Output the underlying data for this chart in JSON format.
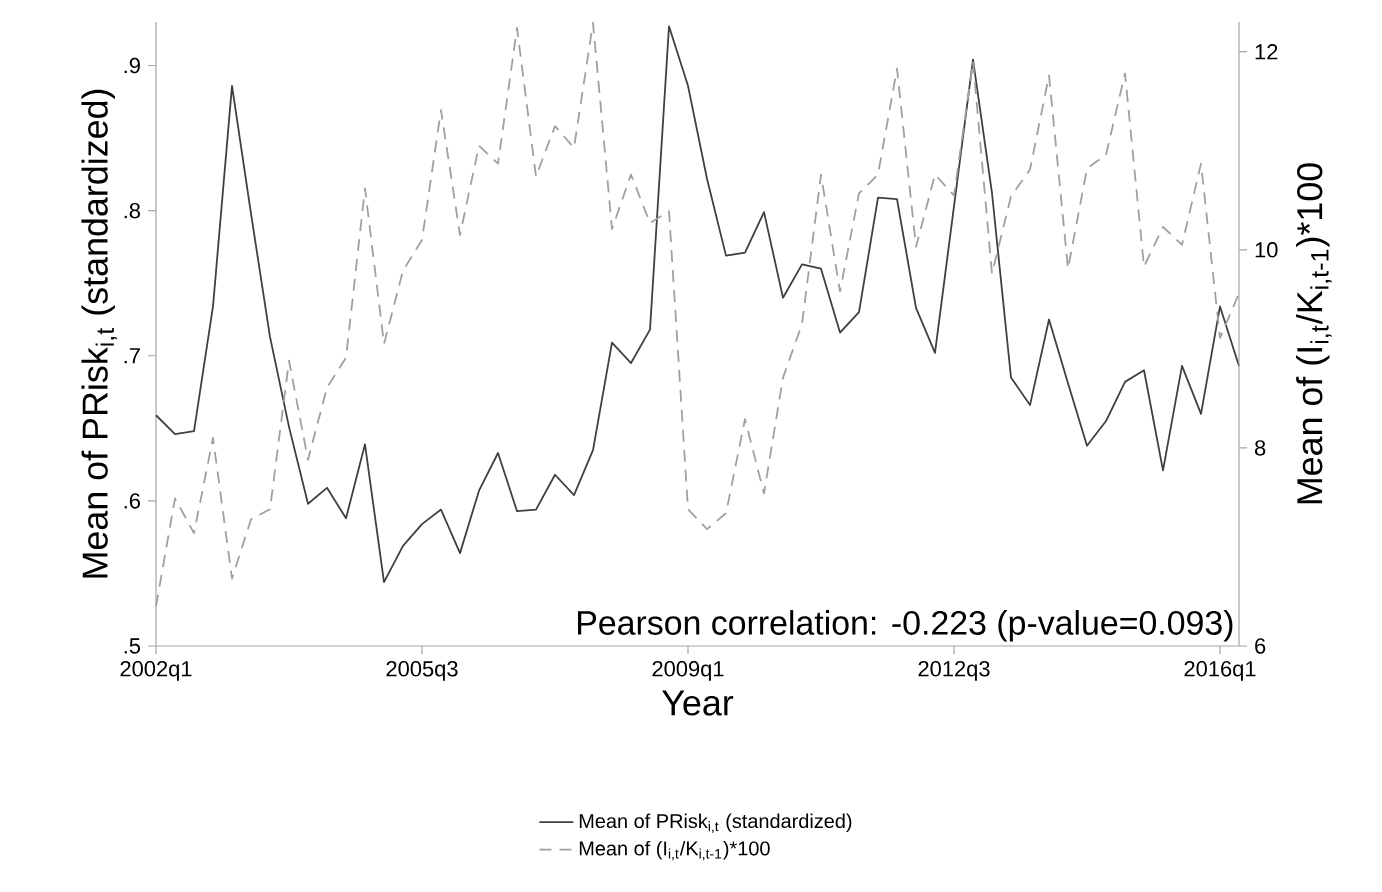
{
  "chart_data": {
    "type": "line",
    "xlabel": "Year",
    "ylabel": "Mean of PRisk$_{i,t}$ (standardized)",
    "y2label": "Mean of (I$_{i,t}$/K$_{i,t-1}$)*100",
    "annotations": [
      "Pearson correlation: -0.223 (p-value=0.093)"
    ],
    "categories": [
      "2002q1",
      null,
      null,
      null,
      null,
      null,
      null,
      null,
      null,
      null,
      null,
      null,
      null,
      null,
      "2005q3",
      null,
      null,
      null,
      null,
      null,
      null,
      null,
      null,
      null,
      null,
      null,
      null,
      null,
      "2009q1",
      null,
      null,
      null,
      null,
      null,
      null,
      null,
      null,
      null,
      null,
      null,
      null,
      null,
      "2012q3",
      null,
      null,
      null,
      null,
      null,
      null,
      null,
      null,
      null,
      null,
      null,
      null,
      null,
      "2016q1",
      null
    ],
    "series": [
      {
        "name": "Mean of PRisk$_{i,t}$ (standardized)",
        "color": "#404040",
        "line_style": "solid",
        "axis": "y",
        "values": [
          0.659,
          0.646,
          0.648,
          0.734,
          0.886,
          0.798,
          0.713,
          0.651,
          0.598,
          0.609,
          0.588,
          0.639,
          0.544,
          0.569,
          0.584,
          0.594,
          0.564,
          0.607,
          0.633,
          0.593,
          0.594,
          0.618,
          0.604,
          0.635,
          0.709,
          0.695,
          0.718,
          0.927,
          0.886,
          0.822,
          0.769,
          0.771,
          0.799,
          0.74,
          0.763,
          0.76,
          0.716,
          0.73,
          0.809,
          0.808,
          0.733,
          0.702,
          0.803,
          0.904,
          0.812,
          0.685,
          0.666,
          0.725,
          0.681,
          0.638,
          0.655,
          0.682,
          0.69,
          0.621,
          0.693,
          0.66,
          0.734,
          0.693
        ]
      },
      {
        "name": "Mean of (I$_{i,t}$/K$_{i,t-1}$)*100",
        "color": "#a0a0a0",
        "line_style": "dashed",
        "axis": "y2",
        "values": [
          6.4,
          7.49,
          7.14,
          8.1,
          6.68,
          7.28,
          7.38,
          8.88,
          7.88,
          8.61,
          8.91,
          10.62,
          9.05,
          9.79,
          10.1,
          11.41,
          10.15,
          11.05,
          10.87,
          12.24,
          10.74,
          11.25,
          11.03,
          12.29,
          10.21,
          10.76,
          10.27,
          10.39,
          7.38,
          7.18,
          7.34,
          8.29,
          7.54,
          8.71,
          9.25,
          10.76,
          9.58,
          10.57,
          10.76,
          11.83,
          10.03,
          10.76,
          10.55,
          11.9,
          9.76,
          10.54,
          10.81,
          11.76,
          9.81,
          10.82,
          10.96,
          11.78,
          9.83,
          10.23,
          10.05,
          10.87,
          9.11,
          9.56
        ]
      }
    ],
    "ylim": [
      0.5,
      0.93
    ],
    "yticks": [
      {
        "value": 0.5,
        "label": ".5"
      },
      {
        "value": 0.6,
        "label": ".6"
      },
      {
        "value": 0.7,
        "label": ".7"
      },
      {
        "value": 0.8,
        "label": ".8"
      },
      {
        "value": 0.9,
        "label": ".9"
      }
    ],
    "y2lim": [
      6,
      12.3
    ],
    "y2ticks": [
      6,
      8,
      10,
      12
    ],
    "grid": false,
    "legend": "bottom",
    "marker": "none"
  }
}
